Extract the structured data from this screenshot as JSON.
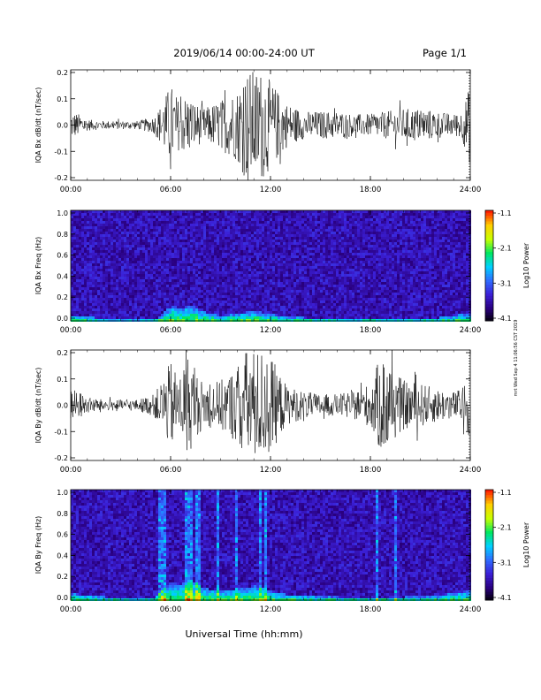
{
  "header": {
    "title": "2019/06/14  00:00-24:00 UT",
    "page": "Page 1/1"
  },
  "footer": {
    "xlabel": "Universal Time (hh:mm)",
    "side_note": "mrt Wed Sep 4 11:06:56 CST 2019"
  },
  "time_ticks": [
    "00:00",
    "06:00",
    "12:00",
    "18:00",
    "24:00"
  ],
  "colorbar": {
    "ticks": [
      "-1.1",
      "-2.1",
      "-3.1",
      "-4.1"
    ],
    "label": "Log10 Power",
    "colors": [
      "#000000",
      "#2a0080",
      "#3b1fd6",
      "#2f6cff",
      "#00d0ff",
      "#00e860",
      "#c8ff00",
      "#ffd000",
      "#ff2000"
    ]
  },
  "chart_data": [
    {
      "type": "line",
      "ylabel": "IQA Bx dB/dt (nT/sec)",
      "xlim": [
        0,
        24
      ],
      "ylim": [
        -0.2,
        0.2
      ],
      "yticks": [
        "0.2",
        "0.1",
        "0.0",
        "-0.1",
        "-0.2"
      ],
      "x_hours": [
        0,
        0.5,
        1,
        2,
        3,
        4,
        5,
        5.5,
        6,
        6.5,
        7,
        7.5,
        8,
        9,
        10,
        10.5,
        11,
        11.5,
        12,
        12.5,
        13,
        14,
        15,
        16,
        17,
        18,
        19,
        20,
        21,
        22,
        23,
        23.5,
        24
      ],
      "envelope_amplitude": [
        0.05,
        0.04,
        0.02,
        0.015,
        0.015,
        0.015,
        0.03,
        0.08,
        0.15,
        0.09,
        0.11,
        0.08,
        0.06,
        0.09,
        0.13,
        0.2,
        0.2,
        0.2,
        0.16,
        0.12,
        0.08,
        0.05,
        0.05,
        0.05,
        0.04,
        0.04,
        0.05,
        0.06,
        0.06,
        0.05,
        0.04,
        0.05,
        0.15
      ]
    },
    {
      "type": "heatmap",
      "ylabel": "IQA Bx Freq (Hz)",
      "xlim": [
        0,
        24
      ],
      "ylim": [
        0.0,
        1.0
      ],
      "yticks": [
        "1.0",
        "0.8",
        "0.6",
        "0.4",
        "0.2",
        "0.0"
      ],
      "zlim": [
        -4.1,
        -1.1
      ],
      "zlabel": "Log10 Power",
      "x_hours": [
        0,
        2,
        4,
        5,
        5.5,
        6,
        6.5,
        7,
        8,
        9,
        10,
        11,
        12,
        13,
        14,
        16,
        18,
        20,
        22,
        24
      ],
      "low_freq_enhancement_cutoff_hz": [
        0.06,
        0.03,
        0.02,
        0.03,
        0.08,
        0.15,
        0.12,
        0.16,
        0.09,
        0.06,
        0.08,
        0.1,
        0.07,
        0.05,
        0.04,
        0.03,
        0.03,
        0.03,
        0.04,
        0.08
      ]
    },
    {
      "type": "line",
      "ylabel": "IQA By dB/dt (nT/sec)",
      "xlim": [
        0,
        24
      ],
      "ylim": [
        -0.2,
        0.2
      ],
      "yticks": [
        "0.2",
        "0.1",
        "0.0",
        "-0.1",
        "-0.2"
      ],
      "x_hours": [
        0,
        0.5,
        1,
        2,
        3,
        4,
        5,
        5.5,
        6,
        6.5,
        7,
        7.5,
        8,
        9,
        10,
        10.5,
        11,
        11.5,
        12,
        12.5,
        13,
        14,
        15,
        16,
        17,
        18,
        18.5,
        19,
        19.5,
        20,
        21,
        22,
        23,
        23.5,
        24
      ],
      "envelope_amplitude": [
        0.06,
        0.05,
        0.03,
        0.02,
        0.02,
        0.02,
        0.04,
        0.09,
        0.16,
        0.1,
        0.19,
        0.12,
        0.08,
        0.09,
        0.14,
        0.2,
        0.2,
        0.2,
        0.18,
        0.12,
        0.07,
        0.05,
        0.04,
        0.04,
        0.05,
        0.08,
        0.16,
        0.19,
        0.12,
        0.09,
        0.08,
        0.06,
        0.05,
        0.06,
        0.12
      ]
    },
    {
      "type": "heatmap",
      "ylabel": "IQA By Freq (Hz)",
      "xlim": [
        0,
        24
      ],
      "ylim": [
        0.0,
        1.0
      ],
      "yticks": [
        "1.0",
        "0.8",
        "0.6",
        "0.4",
        "0.2",
        "0.0"
      ],
      "zlim": [
        -4.1,
        -1.1
      ],
      "zlabel": "Log10 Power",
      "x_hours": [
        0,
        2,
        4,
        5,
        5.5,
        6,
        6.5,
        7,
        8,
        9,
        10,
        11,
        12,
        13,
        14,
        16,
        18,
        20,
        22,
        24
      ],
      "low_freq_enhancement_cutoff_hz": [
        0.07,
        0.04,
        0.03,
        0.04,
        0.1,
        0.18,
        0.14,
        0.2,
        0.12,
        0.09,
        0.12,
        0.14,
        0.09,
        0.06,
        0.05,
        0.04,
        0.04,
        0.04,
        0.05,
        0.1
      ],
      "vertical_streaks_hours": [
        5.3,
        5.6,
        6.9,
        7.1,
        7.6,
        8.8,
        9.9,
        11.3,
        11.6,
        18.3,
        19.4
      ]
    }
  ]
}
